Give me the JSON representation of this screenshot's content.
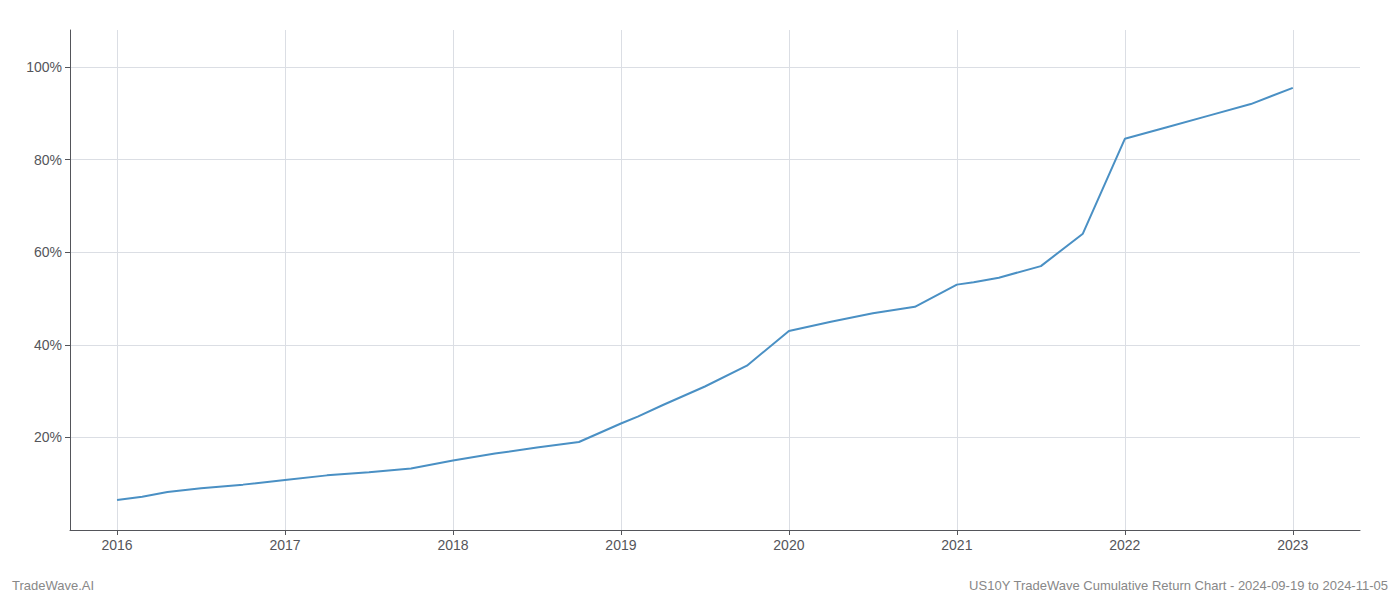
{
  "chart_data": {
    "type": "line",
    "x": [
      2016.0,
      2016.15,
      2016.3,
      2016.5,
      2016.75,
      2017.0,
      2017.25,
      2017.5,
      2017.75,
      2018.0,
      2018.25,
      2018.5,
      2018.75,
      2019.0,
      2019.1,
      2019.25,
      2019.5,
      2019.75,
      2020.0,
      2020.25,
      2020.5,
      2020.75,
      2021.0,
      2021.1,
      2021.25,
      2021.5,
      2021.75,
      2022.0,
      2022.25,
      2022.5,
      2022.75,
      2023.0
    ],
    "values": [
      0.065,
      0.072,
      0.082,
      0.09,
      0.098,
      0.108,
      0.118,
      0.125,
      0.133,
      0.15,
      0.165,
      0.178,
      0.19,
      0.23,
      0.245,
      0.27,
      0.31,
      0.355,
      0.43,
      0.45,
      0.468,
      0.482,
      0.53,
      0.535,
      0.545,
      0.57,
      0.64,
      0.845,
      0.87,
      0.895,
      0.92,
      0.955
    ],
    "color": "#4a90c4",
    "xlim": [
      2015.72,
      2023.4
    ],
    "xticks": [
      2016,
      2017,
      2018,
      2019,
      2020,
      2021,
      2022,
      2023
    ],
    "ylim": [
      0,
      1.08
    ],
    "yticks": [
      {
        "value": 0.2,
        "label": "20%"
      },
      {
        "value": 0.4,
        "label": "40%"
      },
      {
        "value": 0.6,
        "label": "60%"
      },
      {
        "value": 0.8,
        "label": "80%"
      },
      {
        "value": 1.0,
        "label": "100%"
      }
    ],
    "grid": true,
    "annotations": [
      "TradeWave.AI",
      "US10Y TradeWave Cumulative Return Chart - 2024-09-19 to 2024-11-05"
    ]
  }
}
